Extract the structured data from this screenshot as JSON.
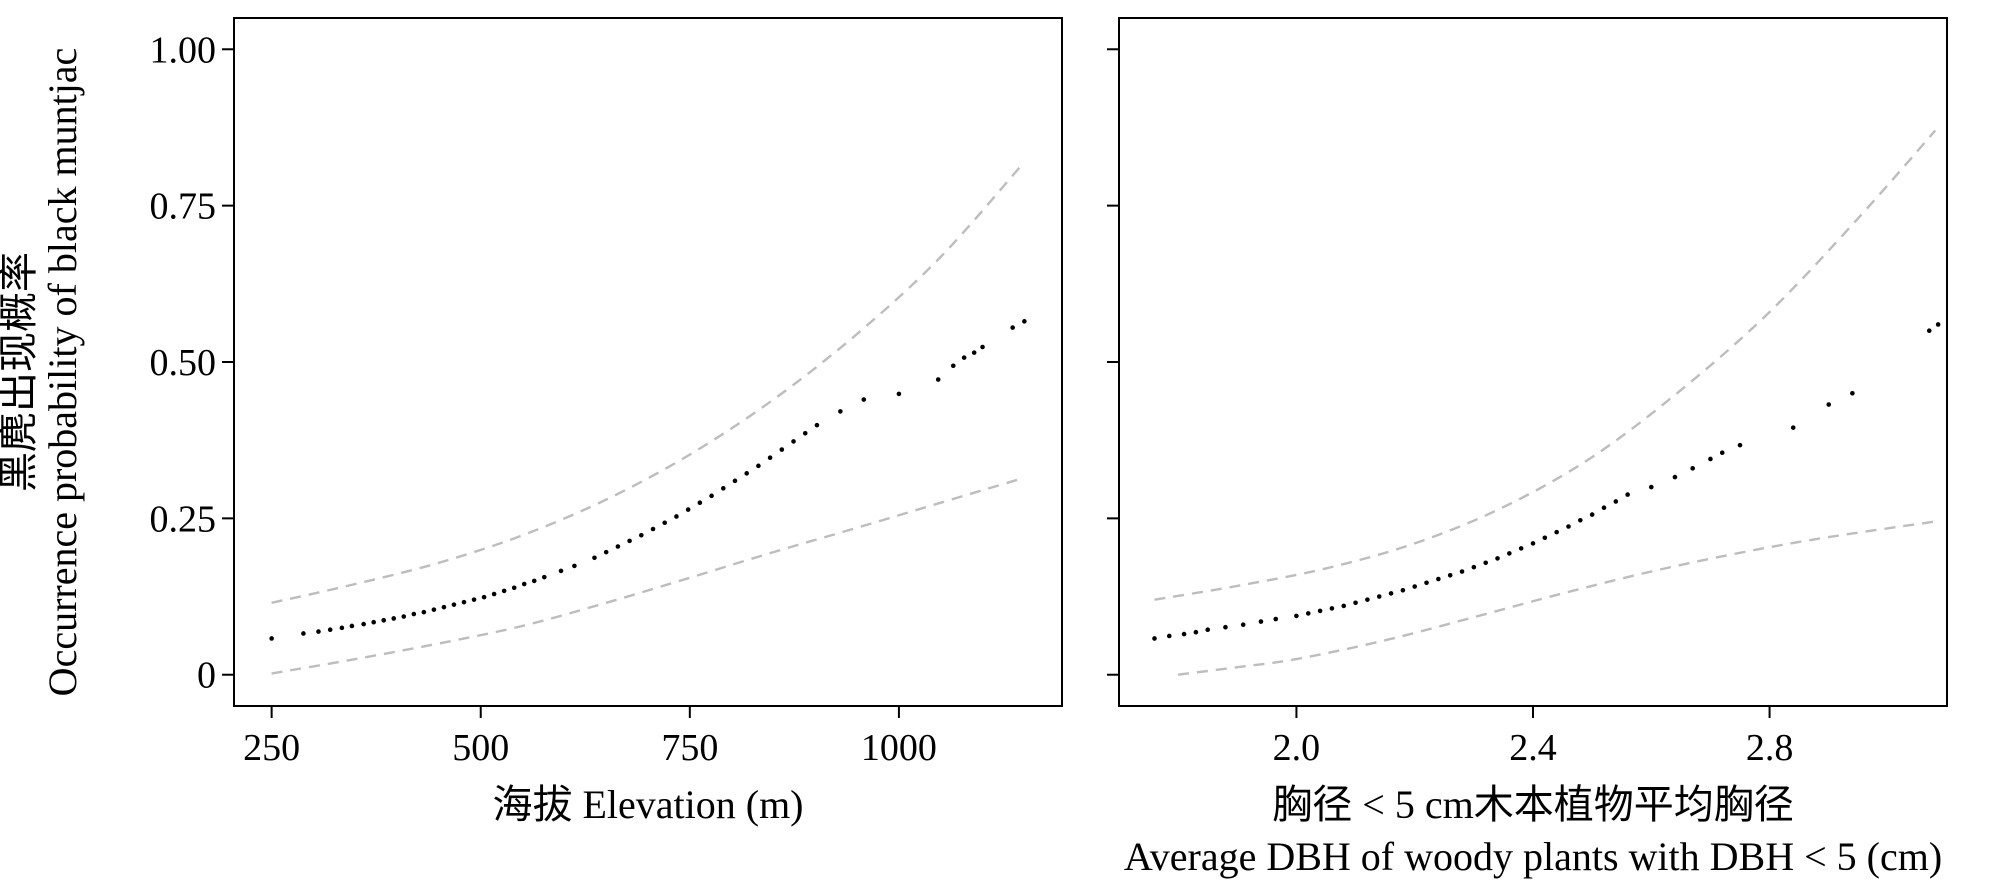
{
  "y_title": {
    "cn": "黑麂出现概率",
    "en": "Occurrence probability of black muntjac"
  },
  "chart_data": [
    {
      "type": "scatter",
      "panel": "left",
      "xlabel": "海拔 Elevation (m)",
      "ylabel": "黑麂出现概率 Occurrence probability of black muntjac",
      "xlim": [
        205,
        1195
      ],
      "ylim": [
        -0.05,
        1.05
      ],
      "x_ticks": [
        250,
        500,
        750,
        1000
      ],
      "x_tick_labels": [
        "250",
        "500",
        "750",
        "1000"
      ],
      "y_ticks": [
        0,
        0.25,
        0.5,
        0.75,
        1.0
      ],
      "y_tick_labels": [
        "0",
        "0.25",
        "0.50",
        "0.75",
        "1.00"
      ],
      "grid": false,
      "points": {
        "x": [
          250,
          288,
          306,
          320,
          334,
          346,
          360,
          372,
          384,
          396,
          408,
          420,
          432,
          444,
          456,
          468,
          480,
          492,
          504,
          516,
          528,
          540,
          552,
          564,
          576,
          596,
          612,
          636,
          650,
          664,
          678,
          692,
          706,
          720,
          734,
          748,
          762,
          776,
          790,
          804,
          818,
          832,
          846,
          860,
          874,
          888,
          902,
          930,
          958,
          1000,
          1047,
          1065,
          1078,
          1090,
          1100,
          1136,
          1150
        ],
        "y": [
          0.058,
          0.066,
          0.069,
          0.072,
          0.075,
          0.078,
          0.081,
          0.084,
          0.087,
          0.09,
          0.093,
          0.097,
          0.1,
          0.104,
          0.108,
          0.112,
          0.116,
          0.12,
          0.124,
          0.129,
          0.134,
          0.139,
          0.145,
          0.15,
          0.156,
          0.166,
          0.174,
          0.187,
          0.196,
          0.205,
          0.214,
          0.223,
          0.233,
          0.243,
          0.253,
          0.264,
          0.275,
          0.286,
          0.298,
          0.31,
          0.322,
          0.334,
          0.347,
          0.36,
          0.373,
          0.386,
          0.399,
          0.421,
          0.44,
          0.449,
          0.472,
          0.494,
          0.507,
          0.515,
          0.524,
          0.555,
          0.565
        ]
      },
      "ci_upper": {
        "x": [
          250,
          350,
          450,
          550,
          650,
          750,
          850,
          950,
          1050,
          1150
        ],
        "y": [
          0.115,
          0.145,
          0.179,
          0.223,
          0.28,
          0.352,
          0.44,
          0.545,
          0.668,
          0.82
        ]
      },
      "ci_lower": {
        "x": [
          250,
          350,
          450,
          550,
          650,
          750,
          850,
          950,
          1050,
          1150
        ],
        "y": [
          0.002,
          0.025,
          0.05,
          0.078,
          0.115,
          0.155,
          0.196,
          0.235,
          0.275,
          0.315
        ]
      }
    },
    {
      "type": "scatter",
      "panel": "right",
      "xlabel": "胸径 < 5 cm木本植物平均胸径",
      "xlabel2": "Average DBH of woody plants with DBH < 5 (cm)",
      "xlim": [
        1.7,
        3.1
      ],
      "ylim": [
        -0.05,
        1.05
      ],
      "x_ticks": [
        2.0,
        2.4,
        2.8
      ],
      "x_tick_labels": [
        "2.0",
        "2.4",
        "2.8"
      ],
      "y_ticks": [
        0,
        0.25,
        0.5,
        0.75,
        1.0
      ],
      "grid": false,
      "points": {
        "x": [
          1.76,
          1.785,
          1.81,
          1.83,
          1.85,
          1.88,
          1.91,
          1.94,
          1.965,
          2.0,
          2.02,
          2.04,
          2.06,
          2.08,
          2.1,
          2.12,
          2.14,
          2.16,
          2.18,
          2.2,
          2.22,
          2.24,
          2.26,
          2.28,
          2.3,
          2.32,
          2.34,
          2.36,
          2.38,
          2.4,
          2.42,
          2.44,
          2.46,
          2.48,
          2.5,
          2.52,
          2.54,
          2.56,
          2.6,
          2.64,
          2.67,
          2.7,
          2.72,
          2.75,
          2.84,
          2.9,
          2.94,
          3.07,
          3.085
        ],
        "y": [
          0.058,
          0.062,
          0.065,
          0.068,
          0.072,
          0.076,
          0.08,
          0.085,
          0.089,
          0.094,
          0.098,
          0.102,
          0.106,
          0.11,
          0.115,
          0.12,
          0.125,
          0.13,
          0.135,
          0.141,
          0.147,
          0.153,
          0.159,
          0.165,
          0.172,
          0.179,
          0.186,
          0.194,
          0.202,
          0.21,
          0.219,
          0.228,
          0.237,
          0.247,
          0.256,
          0.267,
          0.277,
          0.288,
          0.3,
          0.316,
          0.33,
          0.345,
          0.355,
          0.367,
          0.395,
          0.432,
          0.45,
          0.55,
          0.56
        ]
      },
      "ci_upper": {
        "x": [
          1.76,
          1.9,
          2.05,
          2.2,
          2.35,
          2.5,
          2.65,
          2.8,
          2.95,
          3.08
        ],
        "y": [
          0.12,
          0.142,
          0.17,
          0.21,
          0.268,
          0.348,
          0.455,
          0.58,
          0.73,
          0.87
        ]
      },
      "ci_lower": {
        "x": [
          1.8,
          1.9,
          2.0,
          2.15,
          2.3,
          2.45,
          2.6,
          2.75,
          2.9,
          3.08
        ],
        "y": [
          0.0,
          0.012,
          0.025,
          0.055,
          0.092,
          0.13,
          0.165,
          0.195,
          0.22,
          0.245
        ]
      }
    }
  ]
}
